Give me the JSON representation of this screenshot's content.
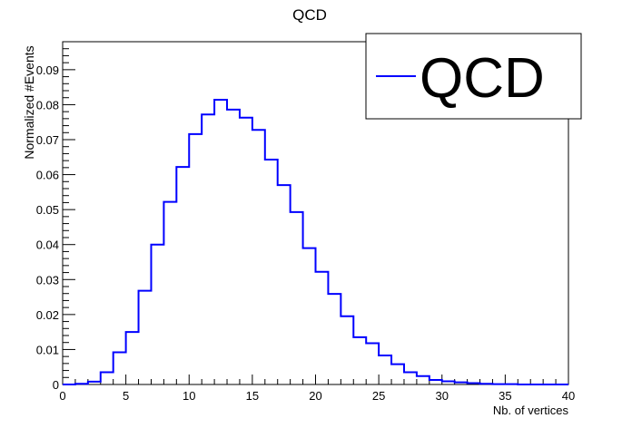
{
  "chart_data": {
    "type": "histogram",
    "title": "QCD",
    "xlabel": "Nb. of vertices",
    "ylabel": "Normalized #Events",
    "xlim": [
      0,
      40
    ],
    "ylim": [
      0,
      0.098
    ],
    "x_ticks": [
      0,
      5,
      10,
      15,
      20,
      25,
      30,
      35,
      40
    ],
    "y_ticks": [
      0,
      0.01,
      0.02,
      0.03,
      0.04,
      0.05,
      0.06,
      0.07,
      0.08,
      0.09
    ],
    "y_tick_labels": [
      "0",
      "0.01",
      "0.02",
      "0.03",
      "0.04",
      "0.05",
      "0.06",
      "0.07",
      "0.08",
      "0.09"
    ],
    "x_tick_labels": [
      "0",
      "5",
      "10",
      "15",
      "20",
      "25",
      "30",
      "35",
      "40"
    ],
    "grid": false,
    "legend": {
      "position": "top-right",
      "entries": [
        "QCD"
      ]
    },
    "series": [
      {
        "name": "QCD",
        "color": "#0000ff",
        "bin_edges": [
          0,
          1,
          2,
          3,
          4,
          5,
          6,
          7,
          8,
          9,
          10,
          11,
          12,
          13,
          14,
          15,
          16,
          17,
          18,
          19,
          20,
          21,
          22,
          23,
          24,
          25,
          26,
          27,
          28,
          29,
          30,
          31,
          32,
          33,
          34,
          35,
          36,
          37,
          38,
          39,
          40
        ],
        "values": [
          0.0,
          0.0002,
          0.0008,
          0.0035,
          0.0092,
          0.015,
          0.0268,
          0.04,
          0.0522,
          0.0622,
          0.0716,
          0.0772,
          0.0814,
          0.0786,
          0.0763,
          0.0728,
          0.0643,
          0.057,
          0.0493,
          0.039,
          0.0322,
          0.0259,
          0.0195,
          0.0135,
          0.0118,
          0.0083,
          0.0058,
          0.0035,
          0.0024,
          0.0013,
          0.0009,
          0.0006,
          0.0004,
          0.0002,
          0.0001,
          0.0001,
          0.0,
          0.0,
          0.0,
          0.0
        ]
      }
    ]
  }
}
